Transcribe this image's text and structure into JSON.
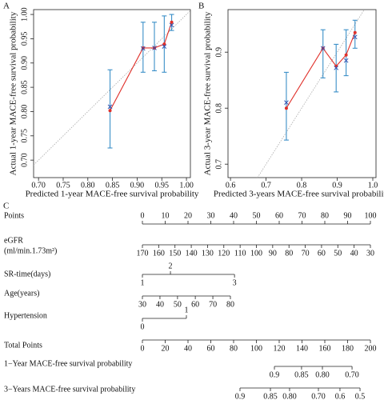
{
  "chart_data": [
    {
      "type": "calibration",
      "label": "A",
      "xlabel": "Predicted 1-year MACE-free survival probability",
      "ylabel": "Actual 1-year MACE-free survival probability",
      "x": [
        0.845,
        0.912,
        0.935,
        0.955,
        0.97
      ],
      "values": [
        0.802,
        0.931,
        0.931,
        0.939,
        0.984
      ],
      "ci_lower": [
        0.725,
        0.881,
        0.884,
        0.881,
        0.967
      ],
      "ci_upper": [
        0.886,
        0.984,
        0.984,
        0.997,
        1.0
      ],
      "corrected": [
        0.81,
        0.93,
        0.931,
        0.934,
        0.978
      ],
      "line_color": "#e0302a",
      "ci_color": "#3a8fc8",
      "xlim": [
        0.69,
        1.008
      ],
      "ylim": [
        0.664,
        1.01
      ],
      "xticks": [
        {
          "value": 0.7,
          "label": "0.70"
        },
        0.75,
        {
          "value": 0.8,
          "label": "0.80"
        },
        0.85,
        {
          "value": 0.9,
          "label": "0.90"
        },
        0.95,
        {
          "value": 1,
          "label": "1.00"
        }
      ],
      "yticks": [
        {
          "value": 0.7,
          "label": "0.70"
        },
        0.75,
        {
          "value": 0.8,
          "label": "0.80"
        },
        0.85,
        {
          "value": 0.9,
          "label": "0.90"
        },
        0.95,
        {
          "value": 1,
          "label": "1.00"
        }
      ]
    },
    {
      "type": "calibration",
      "label": "B",
      "xlabel": "Predicted 3-years MACE-free survival probability",
      "ylabel": "Actual 3-year MACE-free survival probability",
      "x": [
        0.757,
        0.86,
        0.897,
        0.925,
        0.95
      ],
      "values": [
        0.8,
        0.907,
        0.875,
        0.895,
        0.935
      ],
      "ci_lower": [
        0.743,
        0.854,
        0.829,
        0.858,
        0.907
      ],
      "ci_upper": [
        0.864,
        0.94,
        0.914,
        0.94,
        0.957
      ],
      "corrected": [
        0.81,
        0.907,
        0.872,
        0.885,
        0.927
      ],
      "line_color": "#e0302a",
      "ci_color": "#3a8fc8",
      "xlim": [
        0.593,
        1.009
      ],
      "ylim": [
        0.676,
        0.976
      ],
      "xticks": [
        0.6,
        0.7,
        0.8,
        0.9,
        {
          "value": 1,
          "label": "1.0"
        }
      ],
      "yticks": [
        0.7,
        0.8,
        0.9
      ]
    }
  ],
  "nomogram": {
    "label": "C",
    "rows": [
      {
        "label": "Points",
        "ticks": [
          0,
          10,
          20,
          30,
          40,
          50,
          60,
          70,
          80,
          90,
          100
        ]
      },
      {
        "label": "eGFR",
        "sublabel": "(ml/min.1.73m²)",
        "ticks": [
          170,
          160,
          150,
          140,
          130,
          120,
          110,
          100,
          90,
          80,
          70,
          60,
          50,
          40,
          30
        ],
        "points": [
          0,
          7.14,
          14.29,
          21.43,
          28.57,
          35.71,
          42.86,
          50,
          57.14,
          64.29,
          71.43,
          78.57,
          85.71,
          92.86,
          100
        ]
      },
      {
        "label": "SR-time(days)",
        "ticks": [
          1,
          2,
          3
        ],
        "points": [
          0,
          12.3,
          40.4
        ]
      },
      {
        "label": "Age(years)",
        "ticks": [
          30,
          40,
          50,
          60,
          70,
          80
        ],
        "points": [
          0,
          7.7,
          15.4,
          23.2,
          30.9,
          38.6
        ]
      },
      {
        "label": "Hypertension",
        "ticks": [
          0,
          1
        ],
        "points": [
          0,
          19.3
        ]
      },
      {
        "label": "Total Points",
        "ticks": [
          0,
          20,
          40,
          60,
          80,
          100,
          120,
          140,
          160,
          180,
          200
        ]
      },
      {
        "label": "1−Year MACE-free survival probability",
        "ticks": [
          0.9,
          0.85,
          {
            "value": 0.8,
            "label": "0.80"
          },
          {
            "value": 0.7,
            "label": "0.70"
          }
        ],
        "total_points": [
          115.8,
          139.6,
          157.9,
          183.9
        ]
      },
      {
        "label": "3−Years MACE-free survival probability",
        "ticks": [
          0.9,
          0.85,
          {
            "value": 0.8,
            "label": "0.80"
          },
          {
            "value": 0.7,
            "label": "0.70"
          },
          0.6,
          0.5
        ],
        "total_points": [
          85.6,
          112.3,
          129.1,
          154.4,
          173.3,
          190.9
        ]
      }
    ]
  }
}
